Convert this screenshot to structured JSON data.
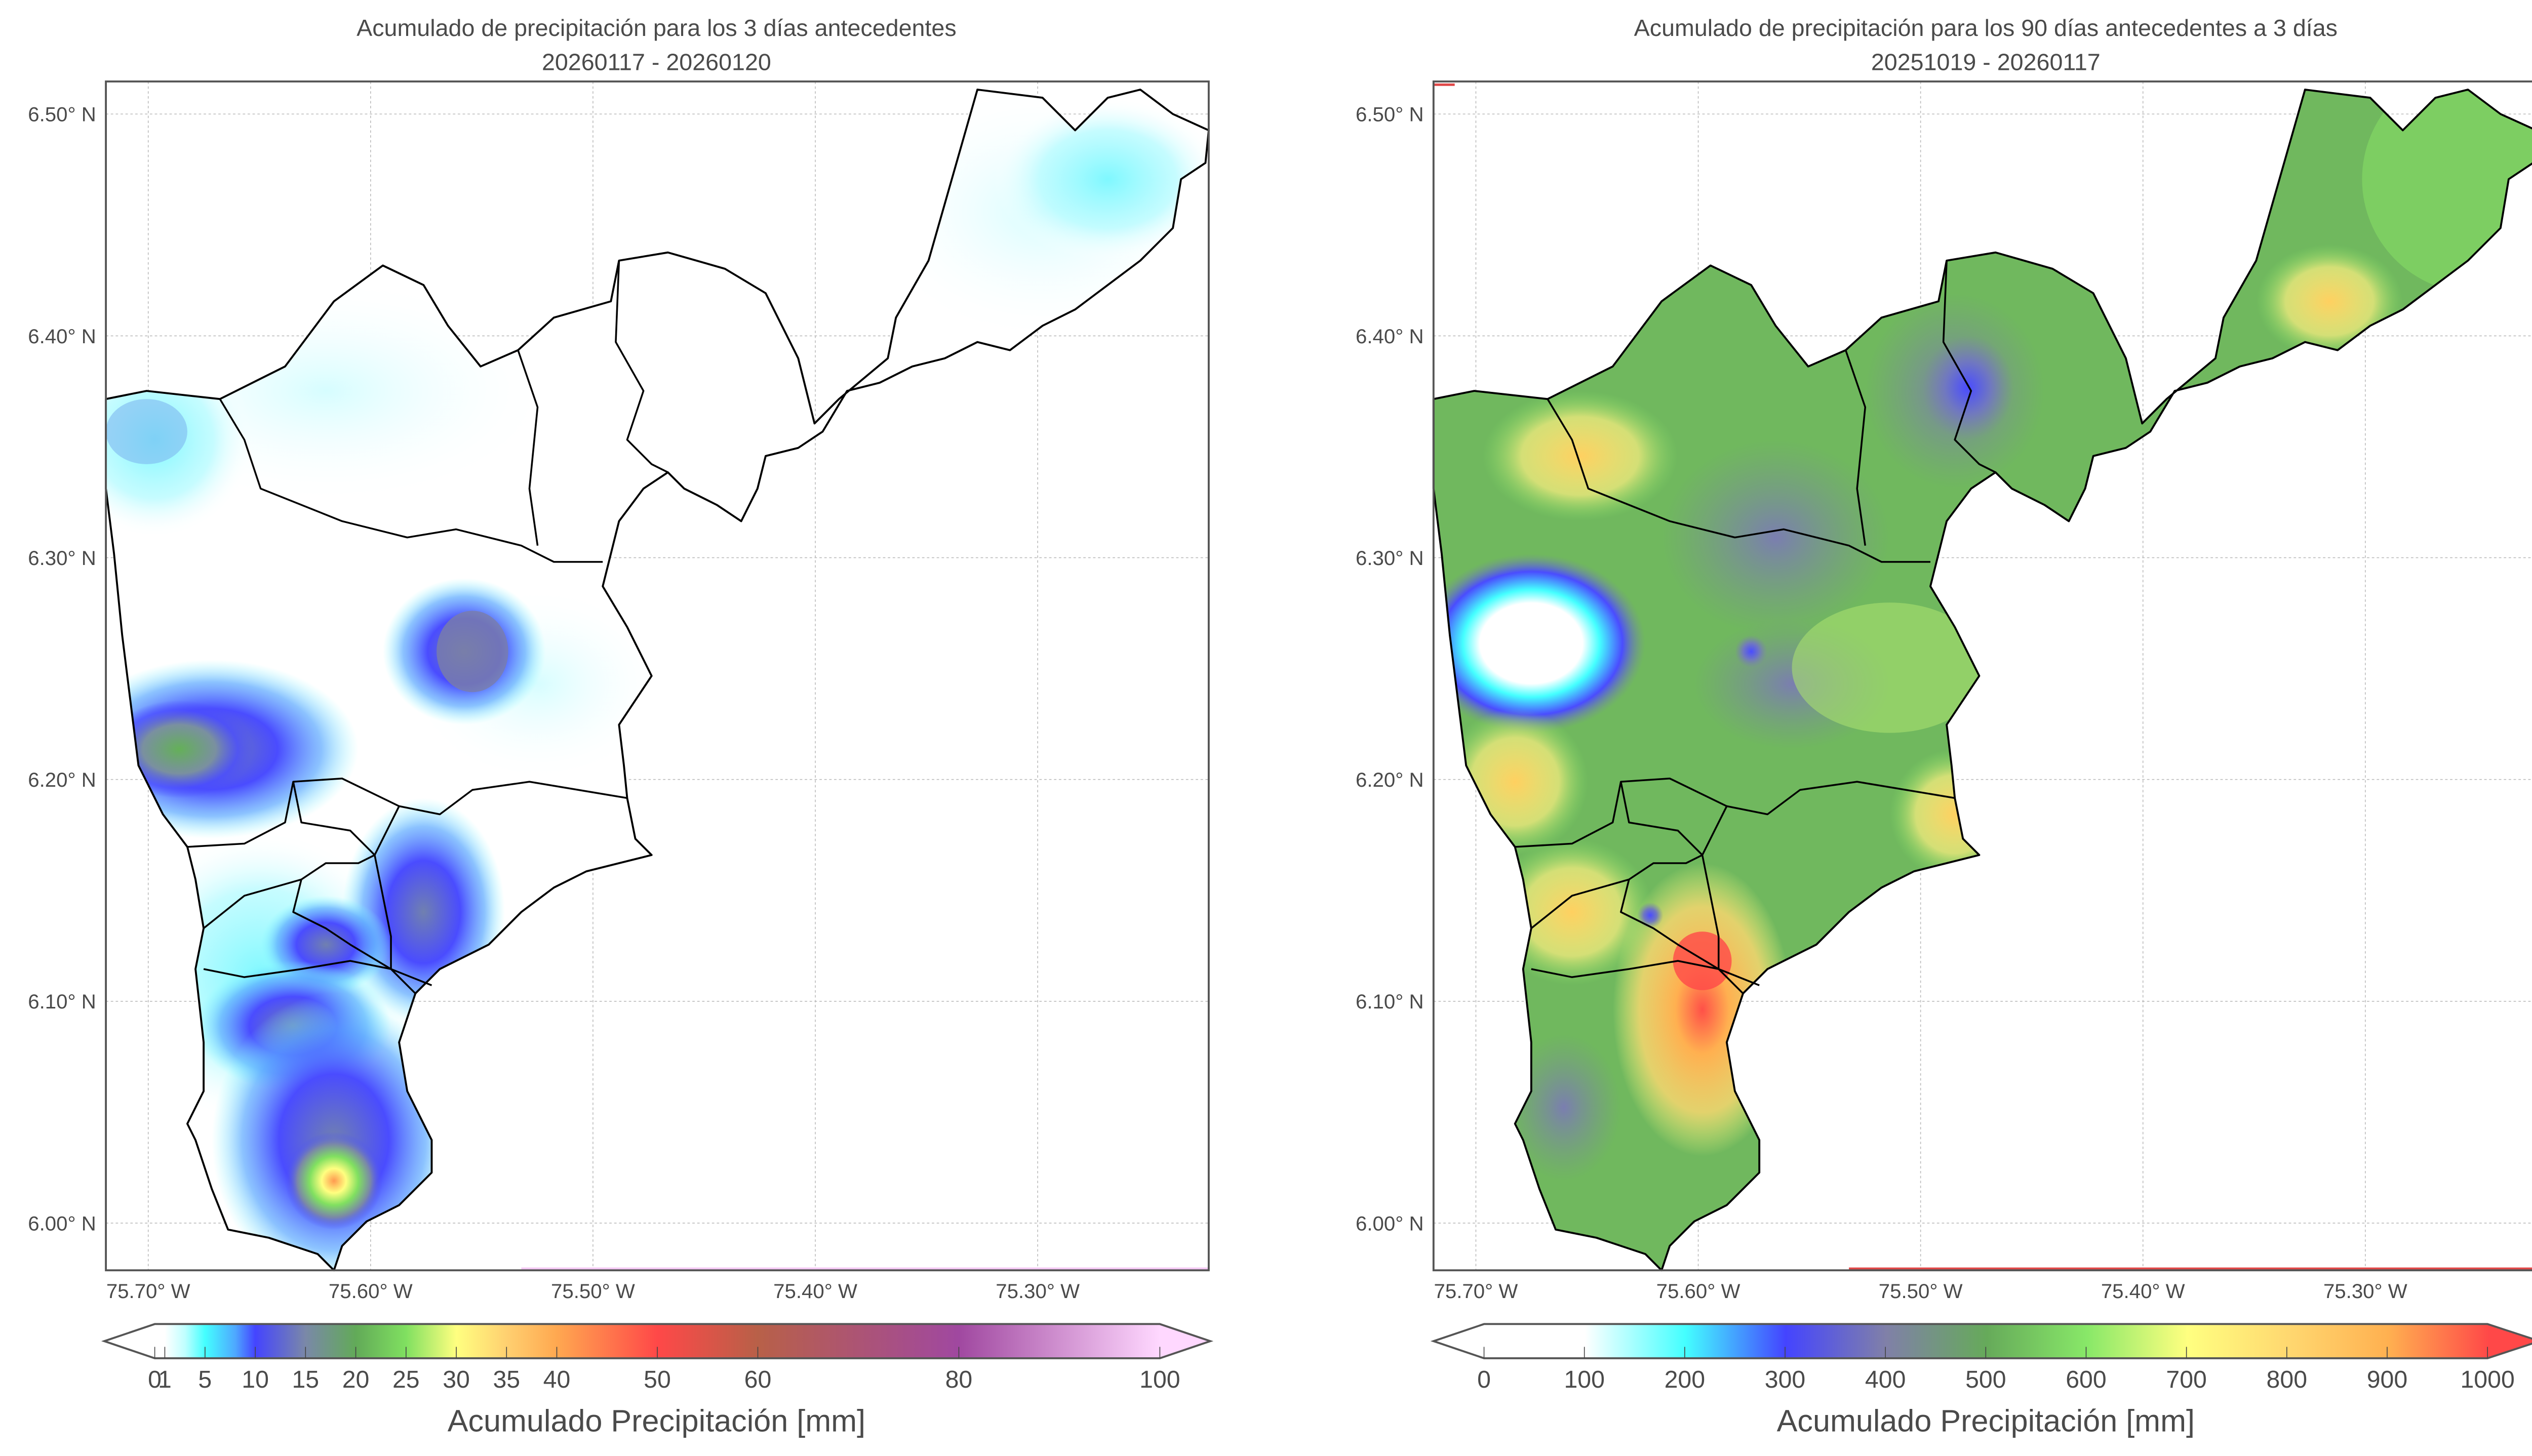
{
  "chart_data": [
    {
      "type": "heatmap",
      "title_line1": "Acumulado de precipitación para los 3 días antecedentes",
      "title_line2": "20260117 - 20260120",
      "lat_ticks": [
        "6.50° N",
        "6.40° N",
        "6.30° N",
        "6.20° N",
        "6.10° N",
        "6.00° N"
      ],
      "lat_values": [
        6.5,
        6.4,
        6.3,
        6.2,
        6.1,
        6.0
      ],
      "lon_ticks": [
        "75.70° W",
        "75.60° W",
        "75.50° W",
        "75.40° W",
        "75.30° W"
      ],
      "lon_values": [
        75.7,
        75.6,
        75.5,
        75.4,
        75.3
      ],
      "grid": true,
      "colorbar": {
        "label": "Acumulado Precipitación [mm]",
        "ticks": [
          "0",
          "1",
          "5",
          "10",
          "15",
          "20",
          "25",
          "30",
          "35",
          "40",
          "50",
          "60",
          "80",
          "100"
        ],
        "tick_values": [
          0,
          1,
          5,
          10,
          15,
          20,
          25,
          30,
          35,
          40,
          50,
          60,
          80,
          100
        ],
        "range": [
          0,
          100
        ],
        "extend": "both",
        "stops": [
          [
            0,
            "#ffffff"
          ],
          [
            1,
            "#ffffff"
          ],
          [
            3,
            "#c0ffff"
          ],
          [
            5,
            "#44ffff"
          ],
          [
            8,
            "#4ea8ff"
          ],
          [
            10,
            "#4444ff"
          ],
          [
            15,
            "#7a88a8"
          ],
          [
            20,
            "#62aa58"
          ],
          [
            25,
            "#80e060"
          ],
          [
            30,
            "#ffff80"
          ],
          [
            35,
            "#ffd070"
          ],
          [
            40,
            "#ffa850"
          ],
          [
            50,
            "#ff4848"
          ],
          [
            60,
            "#b86048"
          ],
          [
            80,
            "#a048a0"
          ],
          [
            100,
            "#ffd8ff"
          ]
        ]
      }
    },
    {
      "type": "heatmap",
      "title_line1": "Acumulado de precipitación para los 90 días antecedentes a 3 días",
      "title_line2": "20251019 - 20260117",
      "lat_ticks": [
        "6.50° N",
        "6.40° N",
        "6.30° N",
        "6.20° N",
        "6.10° N",
        "6.00° N"
      ],
      "lat_values": [
        6.5,
        6.4,
        6.3,
        6.2,
        6.1,
        6.0
      ],
      "lon_ticks": [
        "75.70° W",
        "75.60° W",
        "75.50° W",
        "75.40° W",
        "75.30° W"
      ],
      "lon_values": [
        75.7,
        75.6,
        75.5,
        75.4,
        75.3
      ],
      "grid": true,
      "colorbar": {
        "label": "Acumulado Precipitación [mm]",
        "ticks": [
          "0",
          "100",
          "200",
          "300",
          "400",
          "500",
          "600",
          "700",
          "800",
          "900",
          "1000"
        ],
        "tick_values": [
          0,
          100,
          200,
          300,
          400,
          500,
          600,
          700,
          800,
          900,
          1000
        ],
        "range": [
          0,
          1000
        ],
        "extend": "both",
        "stops": [
          [
            0,
            "#ffffff"
          ],
          [
            100,
            "#ffffff"
          ],
          [
            200,
            "#44ffff"
          ],
          [
            300,
            "#4444ff"
          ],
          [
            400,
            "#8080a8"
          ],
          [
            500,
            "#66aa5a"
          ],
          [
            600,
            "#88e868"
          ],
          [
            700,
            "#ffff80"
          ],
          [
            800,
            "#ffd870"
          ],
          [
            900,
            "#ffb050"
          ],
          [
            1000,
            "#ff4848"
          ]
        ]
      }
    }
  ]
}
